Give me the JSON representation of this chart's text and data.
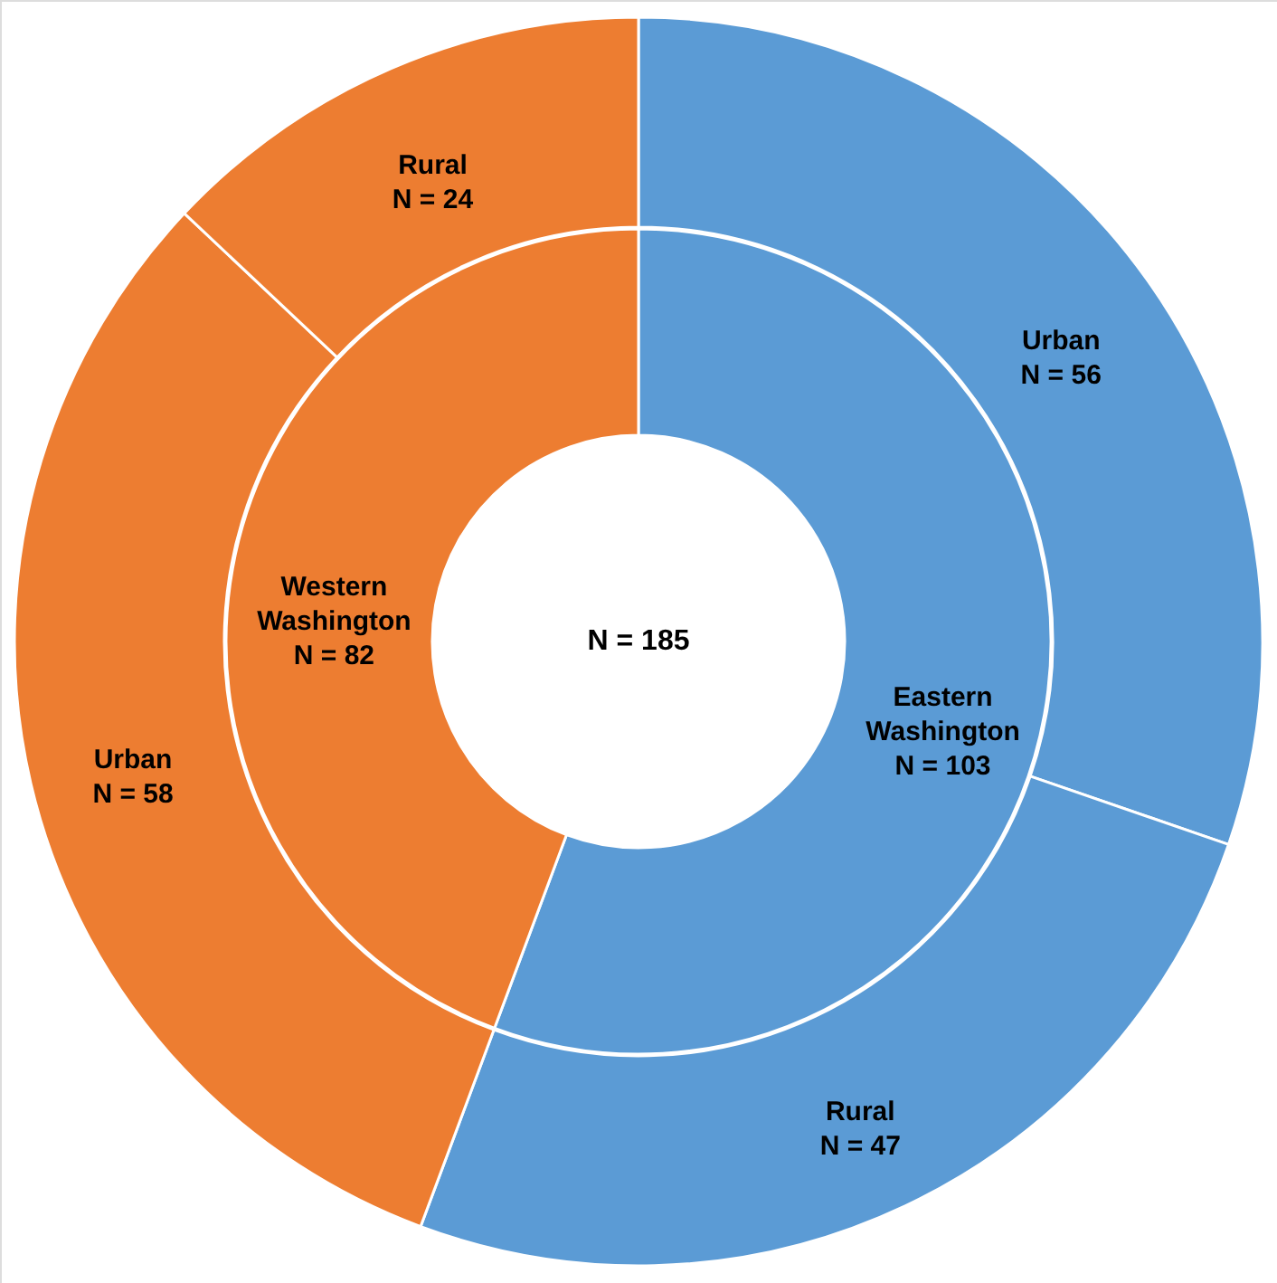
{
  "chart_data": {
    "type": "donut",
    "annotations": [
      "N = 185"
    ],
    "series": [
      {
        "type": "donut",
        "values": [
          103,
          82
        ],
        "colors": [
          "#5b9bd5",
          "#ed7d31"
        ],
        "value_labels": [
          "Eastern Washington N = 103",
          "Western Washington N = 82"
        ]
      },
      {
        "type": "donut",
        "values": [
          56,
          47,
          58,
          24
        ],
        "colors": [
          "#5b9bd5",
          "#5b9bd5",
          "#ed7d31",
          "#ed7d31"
        ],
        "value_labels": [
          "Urban N = 56",
          "Rural N = 47",
          "Urban N = 58",
          "Rural N = 24"
        ]
      }
    ]
  }
}
